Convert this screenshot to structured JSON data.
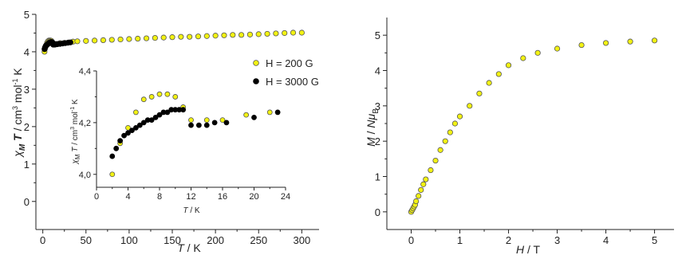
{
  "chart_data": [
    {
      "type": "scatter",
      "xlabel": "T / K",
      "ylabel": "χM T / cm3 mol-1 K",
      "xlim": [
        -8,
        320
      ],
      "ylim": [
        -0.75,
        5
      ],
      "xticks": [
        0,
        50,
        100,
        150,
        200,
        250,
        300
      ],
      "yticks": [
        0,
        1,
        2,
        3,
        4,
        5
      ],
      "legend_position": "right-middle",
      "grid": false,
      "series": [
        {
          "name": "H = 200 G",
          "color": "#f2f213",
          "x": [
            2,
            2.5,
            3,
            3.5,
            4,
            5,
            6,
            7,
            8,
            9,
            10,
            11,
            12,
            14,
            16,
            20,
            25,
            30,
            35,
            40,
            50,
            60,
            70,
            80,
            90,
            100,
            110,
            120,
            130,
            140,
            150,
            160,
            170,
            180,
            190,
            200,
            210,
            220,
            230,
            240,
            250,
            260,
            270,
            280,
            290,
            300
          ],
          "y": [
            4.0,
            4.08,
            4.12,
            4.15,
            4.18,
            4.24,
            4.28,
            4.3,
            4.3,
            4.3,
            4.29,
            4.26,
            4.21,
            4.21,
            4.21,
            4.23,
            4.24,
            4.25,
            4.27,
            4.28,
            4.29,
            4.3,
            4.31,
            4.32,
            4.33,
            4.34,
            4.35,
            4.36,
            4.37,
            4.38,
            4.39,
            4.4,
            4.4,
            4.41,
            4.42,
            4.43,
            4.44,
            4.45,
            4.45,
            4.46,
            4.47,
            4.48,
            4.49,
            4.5,
            4.51,
            4.51
          ]
        },
        {
          "name": "H = 3000 G",
          "color": "#000000",
          "x": [
            2,
            2.5,
            3,
            3.5,
            4,
            4.5,
            5,
            5.5,
            6,
            6.5,
            7,
            7.5,
            8,
            8.5,
            9,
            9.5,
            10,
            11,
            12,
            13,
            14,
            15,
            16.5,
            18,
            20,
            23,
            26,
            29,
            32
          ],
          "y": [
            4.07,
            4.11,
            4.14,
            4.16,
            4.17,
            4.18,
            4.19,
            4.2,
            4.21,
            4.22,
            4.23,
            4.24,
            4.24,
            4.25,
            4.25,
            4.26,
            4.26,
            4.25,
            4.19,
            4.19,
            4.19,
            4.2,
            4.2,
            4.21,
            4.21,
            4.22,
            4.23,
            4.24,
            4.25
          ]
        }
      ]
    },
    {
      "type": "scatter",
      "xlabel": "T / K",
      "ylabel": "χM T / cm3 mol-1 K",
      "xlim": [
        0,
        24
      ],
      "ylim": [
        3.95,
        4.4
      ],
      "xticks": [
        "0",
        "4",
        "8",
        "12",
        "16",
        "20",
        "24"
      ],
      "yticks": [
        "4,0",
        "4,2",
        "4,4"
      ],
      "grid": false,
      "series": [
        {
          "name": "H = 200 G",
          "color": "#f2f213",
          "x": [
            2,
            3,
            4,
            5,
            6,
            7,
            8,
            9,
            10,
            11,
            12,
            14,
            16,
            19,
            22
          ],
          "y": [
            4.0,
            4.12,
            4.18,
            4.24,
            4.29,
            4.3,
            4.31,
            4.31,
            4.3,
            4.26,
            4.21,
            4.21,
            4.21,
            4.23,
            4.24
          ]
        },
        {
          "name": "H = 3000 G",
          "color": "#000000",
          "x": [
            2,
            2.5,
            3,
            3.5,
            4,
            4.5,
            5,
            5.5,
            6,
            6.5,
            7,
            7.5,
            8,
            8.5,
            9,
            9.5,
            10,
            10.5,
            11,
            12,
            13,
            14,
            15,
            16.5,
            20,
            23
          ],
          "y": [
            4.07,
            4.1,
            4.13,
            4.15,
            4.16,
            4.17,
            4.18,
            4.19,
            4.2,
            4.21,
            4.21,
            4.22,
            4.23,
            4.24,
            4.24,
            4.25,
            4.25,
            4.25,
            4.25,
            4.19,
            4.19,
            4.19,
            4.2,
            4.2,
            4.22,
            4.24
          ]
        }
      ]
    },
    {
      "type": "scatter",
      "xlabel": "H / T",
      "ylabel": "M / NμB",
      "xlim": [
        -0.5,
        5.4
      ],
      "ylim": [
        -0.5,
        5.5
      ],
      "xticks": [
        0,
        1,
        2,
        3,
        4,
        5
      ],
      "yticks": [
        0,
        1,
        2,
        3,
        4,
        5
      ],
      "grid": false,
      "series": [
        {
          "color": "#f2f213",
          "x": [
            0,
            0.02,
            0.04,
            0.06,
            0.08,
            0.1,
            0.15,
            0.2,
            0.25,
            0.3,
            0.4,
            0.5,
            0.6,
            0.7,
            0.8,
            0.9,
            1.0,
            1.2,
            1.4,
            1.6,
            1.8,
            2.0,
            2.3,
            2.6,
            3.0,
            3.5,
            4.0,
            4.5,
            5.0
          ],
          "y": [
            0.0,
            0.05,
            0.1,
            0.15,
            0.2,
            0.3,
            0.45,
            0.62,
            0.78,
            0.92,
            1.18,
            1.45,
            1.75,
            2.0,
            2.25,
            2.5,
            2.7,
            3.0,
            3.35,
            3.65,
            3.9,
            4.15,
            4.35,
            4.5,
            4.62,
            4.72,
            4.78,
            4.82,
            4.85
          ]
        }
      ]
    }
  ]
}
